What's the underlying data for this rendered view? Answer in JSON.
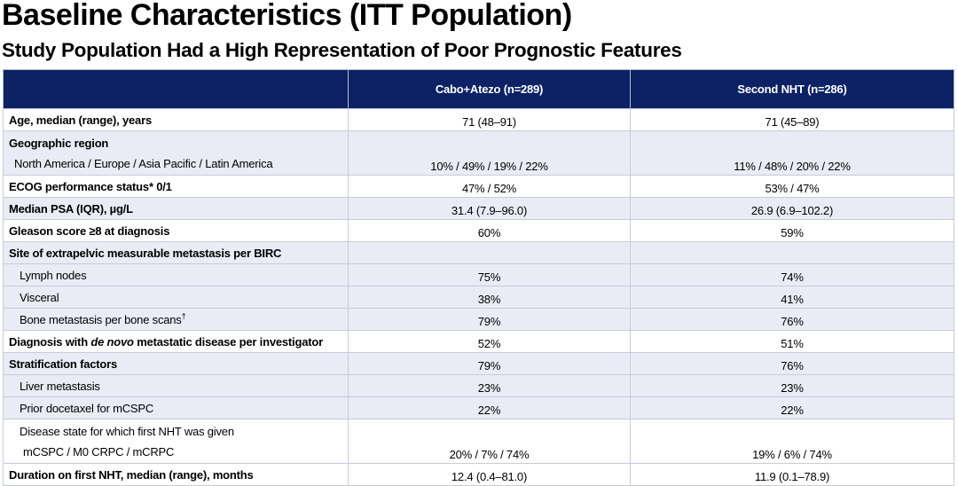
{
  "header": {
    "title": "Baseline Characteristics (ITT Population)",
    "subtitle": "Study Population Had a High Representation of Poor Prognostic Features"
  },
  "table": {
    "columns": [
      "Cabo+Atezo (n=289)",
      "Second NHT (n=286)"
    ],
    "rows": [
      {
        "label": "Age, median (range), years",
        "bold": true,
        "values": [
          "71 (48–91)",
          "71 (45–89)"
        ]
      },
      {
        "label": "Geographic region",
        "bold": true,
        "shade": true,
        "sublabel": "North America / Europe / Asia Pacific / Latin America",
        "values": [
          "10% / 49% / 19% / 22%",
          "11% / 48% / 20% / 22%"
        ]
      },
      {
        "label": "ECOG performance status* 0/1",
        "bold": true,
        "values": [
          "47% / 52%",
          "53% / 47%"
        ]
      },
      {
        "label": "Median PSA (IQR), µg/L",
        "bold": true,
        "shade": true,
        "values": [
          "31.4 (7.9–96.0)",
          "26.9 (6.9–102.2)"
        ]
      },
      {
        "label": "Gleason score ≥8 at diagnosis",
        "bold": true,
        "values": [
          "60%",
          "59%"
        ]
      },
      {
        "label": "Site of extrapelvic measurable metastasis per BIRC",
        "bold": true,
        "shade": true
      },
      {
        "label": "Lymph nodes",
        "indent": 1,
        "shade": true,
        "values": [
          "75%",
          "74%"
        ]
      },
      {
        "label": "Visceral",
        "indent": 1,
        "shade": true,
        "values": [
          "38%",
          "41%"
        ]
      },
      {
        "label": "Bone metastasis per bone scans",
        "sup": "†",
        "indent": 1,
        "shade": true,
        "values": [
          "79%",
          "76%"
        ]
      },
      {
        "label": [
          "Diagnosis with ",
          "de novo",
          " metastatic disease per investigator"
        ],
        "italic": [
          1
        ],
        "bold": true,
        "values": [
          "52%",
          "51%"
        ]
      },
      {
        "label": "Stratification factors",
        "bold": true,
        "shade": true,
        "values": [
          "79%",
          "76%"
        ]
      },
      {
        "label": "Liver metastasis",
        "indent": 1,
        "shade": true,
        "values": [
          "23%",
          "23%"
        ]
      },
      {
        "label": "Prior docetaxel for mCSPC",
        "indent": 1,
        "shade": true,
        "values": [
          "22%",
          "22%"
        ]
      },
      {
        "label": "Disease state for which first NHT was given",
        "indent": 1,
        "sublabel": "mCSPC / M0 CRPC / mCRPC",
        "values": [
          "20% / 7% / 74%",
          "19% / 6% / 74%"
        ]
      },
      {
        "label": "Duration on first NHT, median (range), months",
        "bold": true,
        "values": [
          "12.4 (0.4–81.0)",
          "11.9 (0.1–78.9)"
        ]
      }
    ]
  }
}
